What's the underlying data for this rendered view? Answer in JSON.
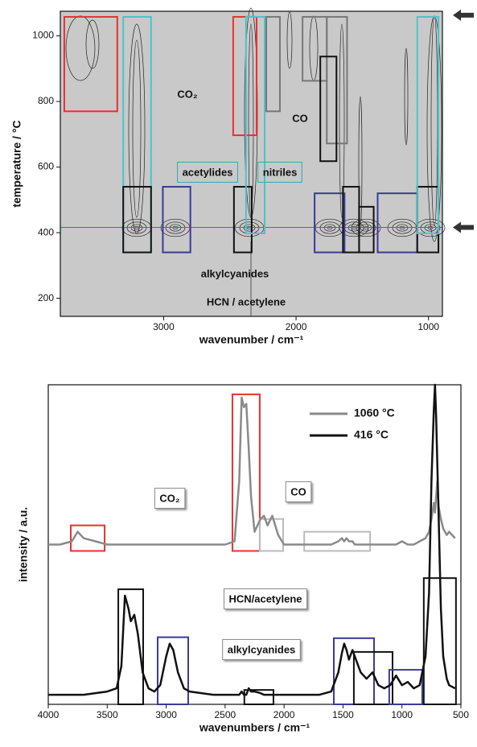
{
  "chart_data": [
    {
      "type": "contour",
      "xlabel": "wavenumber / cm⁻¹",
      "ylabel": "temperature / °C",
      "xlim": [
        3780,
        895
      ],
      "ylim": [
        145,
        1075
      ],
      "xticks": [
        3000,
        2000,
        1000
      ],
      "yticks": [
        200,
        400,
        600,
        800,
        1000
      ],
      "hline": 416,
      "hline_color": "#e8312f",
      "arrows": [
        1063,
        416
      ],
      "regions": [
        {
          "color": "#e8312f",
          "x": [
            3750,
            3350
          ],
          "y": [
            770,
            1058
          ]
        },
        {
          "color": "#4cc3c8",
          "x": [
            3305,
            3095
          ],
          "y": [
            340,
            1058
          ]
        },
        {
          "color": "#111111",
          "x": [
            3305,
            3095
          ],
          "y": [
            340,
            540
          ]
        },
        {
          "color": "#3a3a9a",
          "x": [
            3006,
            2798
          ],
          "y": [
            340,
            540
          ]
        },
        {
          "color": "#e8312f",
          "x": [
            2475,
            2298
          ],
          "y": [
            697,
            1058
          ]
        },
        {
          "color": "#111111",
          "x": [
            2469,
            2335
          ],
          "y": [
            340,
            540
          ]
        },
        {
          "color": "#4cc3c8",
          "x": [
            2378,
            2237
          ],
          "y": [
            398,
            1058
          ]
        },
        {
          "color": "#777777",
          "x": [
            1951,
            1768
          ],
          "y": [
            863,
            1058
          ]
        },
        {
          "color": "#777777",
          "x": [
            2225,
            2122
          ],
          "y": [
            770,
            1058
          ]
        },
        {
          "color": "#777777",
          "x": [
            1768,
            1615
          ],
          "y": [
            672,
            1058
          ]
        },
        {
          "color": "#111111",
          "x": [
            1695,
            1817
          ],
          "y": [
            618,
            937
          ]
        },
        {
          "color": "#3a3a9a",
          "x": [
            1860,
            1634
          ],
          "y": [
            340,
            520
          ]
        },
        {
          "color": "#111111",
          "x": [
            1646,
            1524
          ],
          "y": [
            340,
            540
          ]
        },
        {
          "color": "#111111",
          "x": [
            1524,
            1414
          ],
          "y": [
            340,
            479
          ]
        },
        {
          "color": "#3a3a9a",
          "x": [
            1384,
            1085
          ],
          "y": [
            340,
            520
          ]
        },
        {
          "color": "#111111",
          "x": [
            1085,
            925
          ],
          "y": [
            340,
            540
          ]
        },
        {
          "color": "#4cc3c8",
          "x": [
            1085,
            925
          ],
          "y": [
            398,
            1058
          ]
        }
      ],
      "annotations": [
        {
          "text": "CO₂",
          "color": "#e8312f"
        },
        {
          "text": "CO",
          "color": "#555555"
        },
        {
          "text": "acetylides",
          "color": "#3aa5a8"
        },
        {
          "text": "nitriles",
          "color": "#3aa5a8"
        },
        {
          "text": "alkylcyanides",
          "color": "#3a3a9a"
        },
        {
          "text": "HCN / acetylene",
          "color": "#111111"
        }
      ]
    },
    {
      "type": "line",
      "xlabel": "wavenumbers / cm⁻¹",
      "ylabel": "intensity / a.u.",
      "xlim": [
        4000,
        500
      ],
      "ylim": [
        0,
        10
      ],
      "xticks": [
        4000,
        3500,
        3000,
        2500,
        2000,
        1500,
        1000,
        500
      ],
      "legend": "upper right",
      "x": [
        4000,
        3900,
        3800,
        3750,
        3700,
        3600,
        3500,
        3420,
        3380,
        3350,
        3320,
        3300,
        3270,
        3240,
        3200,
        3150,
        3100,
        3050,
        3000,
        2970,
        2940,
        2900,
        2850,
        2800,
        2700,
        2600,
        2500,
        2420,
        2380,
        2360,
        2340,
        2320,
        2300,
        2280,
        2250,
        2200,
        2170,
        2140,
        2100,
        2050,
        2000,
        1900,
        1800,
        1700,
        1600,
        1540,
        1510,
        1490,
        1470,
        1450,
        1420,
        1400,
        1380,
        1350,
        1300,
        1250,
        1200,
        1150,
        1100,
        1050,
        1000,
        950,
        900,
        850,
        800,
        770,
        750,
        730,
        720,
        710,
        700,
        690,
        670,
        650,
        620,
        600,
        550
      ],
      "series": [
        {
          "name": "1060 °C",
          "color": "#8a8a8a",
          "values": [
            5.0,
            5.0,
            5.1,
            5.4,
            5.2,
            5.1,
            5.0,
            5.0,
            5.0,
            5.0,
            5.0,
            5.0,
            5.0,
            5.0,
            5.0,
            5.0,
            5.0,
            5.0,
            5.0,
            5.0,
            5.0,
            5.0,
            5.0,
            5.0,
            5.0,
            5.0,
            5.0,
            5.1,
            7.0,
            9.6,
            9.3,
            9.4,
            8.0,
            6.5,
            5.4,
            5.8,
            5.9,
            5.6,
            5.9,
            5.3,
            5.0,
            5.0,
            5.0,
            5.0,
            5.0,
            5.1,
            5.2,
            5.1,
            5.2,
            5.1,
            5.1,
            5.0,
            5.0,
            5.0,
            5.0,
            5.0,
            5.0,
            5.0,
            5.0,
            5.0,
            5.1,
            5.0,
            5.0,
            5.1,
            5.2,
            5.4,
            5.8,
            6.3,
            6.0,
            6.5,
            7.0,
            6.2,
            5.8,
            5.5,
            5.3,
            5.4,
            5.2
          ]
        },
        {
          "name": "416 °C",
          "color": "#111111",
          "values": [
            0.3,
            0.3,
            0.3,
            0.3,
            0.3,
            0.35,
            0.4,
            0.5,
            1.2,
            3.4,
            3.0,
            2.6,
            2.8,
            2.2,
            1.0,
            0.5,
            0.4,
            0.6,
            1.5,
            1.9,
            1.7,
            1.0,
            0.5,
            0.4,
            0.35,
            0.3,
            0.3,
            0.3,
            0.3,
            0.4,
            0.3,
            0.3,
            0.5,
            0.4,
            0.4,
            0.35,
            0.3,
            0.3,
            0.3,
            0.3,
            0.3,
            0.3,
            0.3,
            0.3,
            0.4,
            1.0,
            1.6,
            1.9,
            1.7,
            1.4,
            1.7,
            1.5,
            1.3,
            1.0,
            0.8,
            1.0,
            0.6,
            0.5,
            0.6,
            0.9,
            0.6,
            0.7,
            0.5,
            0.6,
            1.5,
            3.5,
            7.0,
            9.2,
            10.0,
            9.0,
            7.5,
            6.0,
            3.0,
            1.5,
            0.8,
            0.6,
            0.5
          ]
        }
      ],
      "regions": [
        {
          "color": "#e8312f",
          "x": [
            3809,
            3522
          ],
          "y": [
            4.8,
            5.6
          ]
        },
        {
          "color": "#e8312f",
          "x": [
            2438,
            2206
          ],
          "y": [
            4.8,
            9.7
          ]
        },
        {
          "color": "#bbbbbb",
          "x": [
            2206,
            2008
          ],
          "y": [
            4.8,
            5.8
          ]
        },
        {
          "color": "#bbbbbb",
          "x": [
            1829,
            1270
          ],
          "y": [
            4.8,
            5.4
          ]
        },
        {
          "color": "#111111",
          "x": [
            3406,
            3195
          ],
          "y": [
            0,
            3.6
          ]
        },
        {
          "color": "#3a3a9a",
          "x": [
            3072,
            2813
          ],
          "y": [
            0,
            2.1
          ]
        },
        {
          "color": "#111111",
          "x": [
            2337,
            2090
          ],
          "y": [
            0,
            0.45
          ]
        },
        {
          "color": "#3a3a9a",
          "x": [
            1578,
            1237
          ],
          "y": [
            0,
            2.07
          ]
        },
        {
          "color": "#111111",
          "x": [
            1408,
            1080
          ],
          "y": [
            0,
            1.64
          ]
        },
        {
          "color": "#3a3a9a",
          "x": [
            1108,
            828
          ],
          "y": [
            0,
            1.08
          ]
        },
        {
          "color": "#111111",
          "x": [
            815,
            542
          ],
          "y": [
            0,
            3.95
          ]
        }
      ],
      "annotations": [
        {
          "text": "CO₂",
          "color": "#e8312f"
        },
        {
          "text": "CO",
          "color": "#aaaaaa"
        },
        {
          "text": "HCN/acetylene",
          "color": "#111111"
        },
        {
          "text": "alkylcyanides",
          "color": "#3a3a9a"
        }
      ]
    }
  ]
}
